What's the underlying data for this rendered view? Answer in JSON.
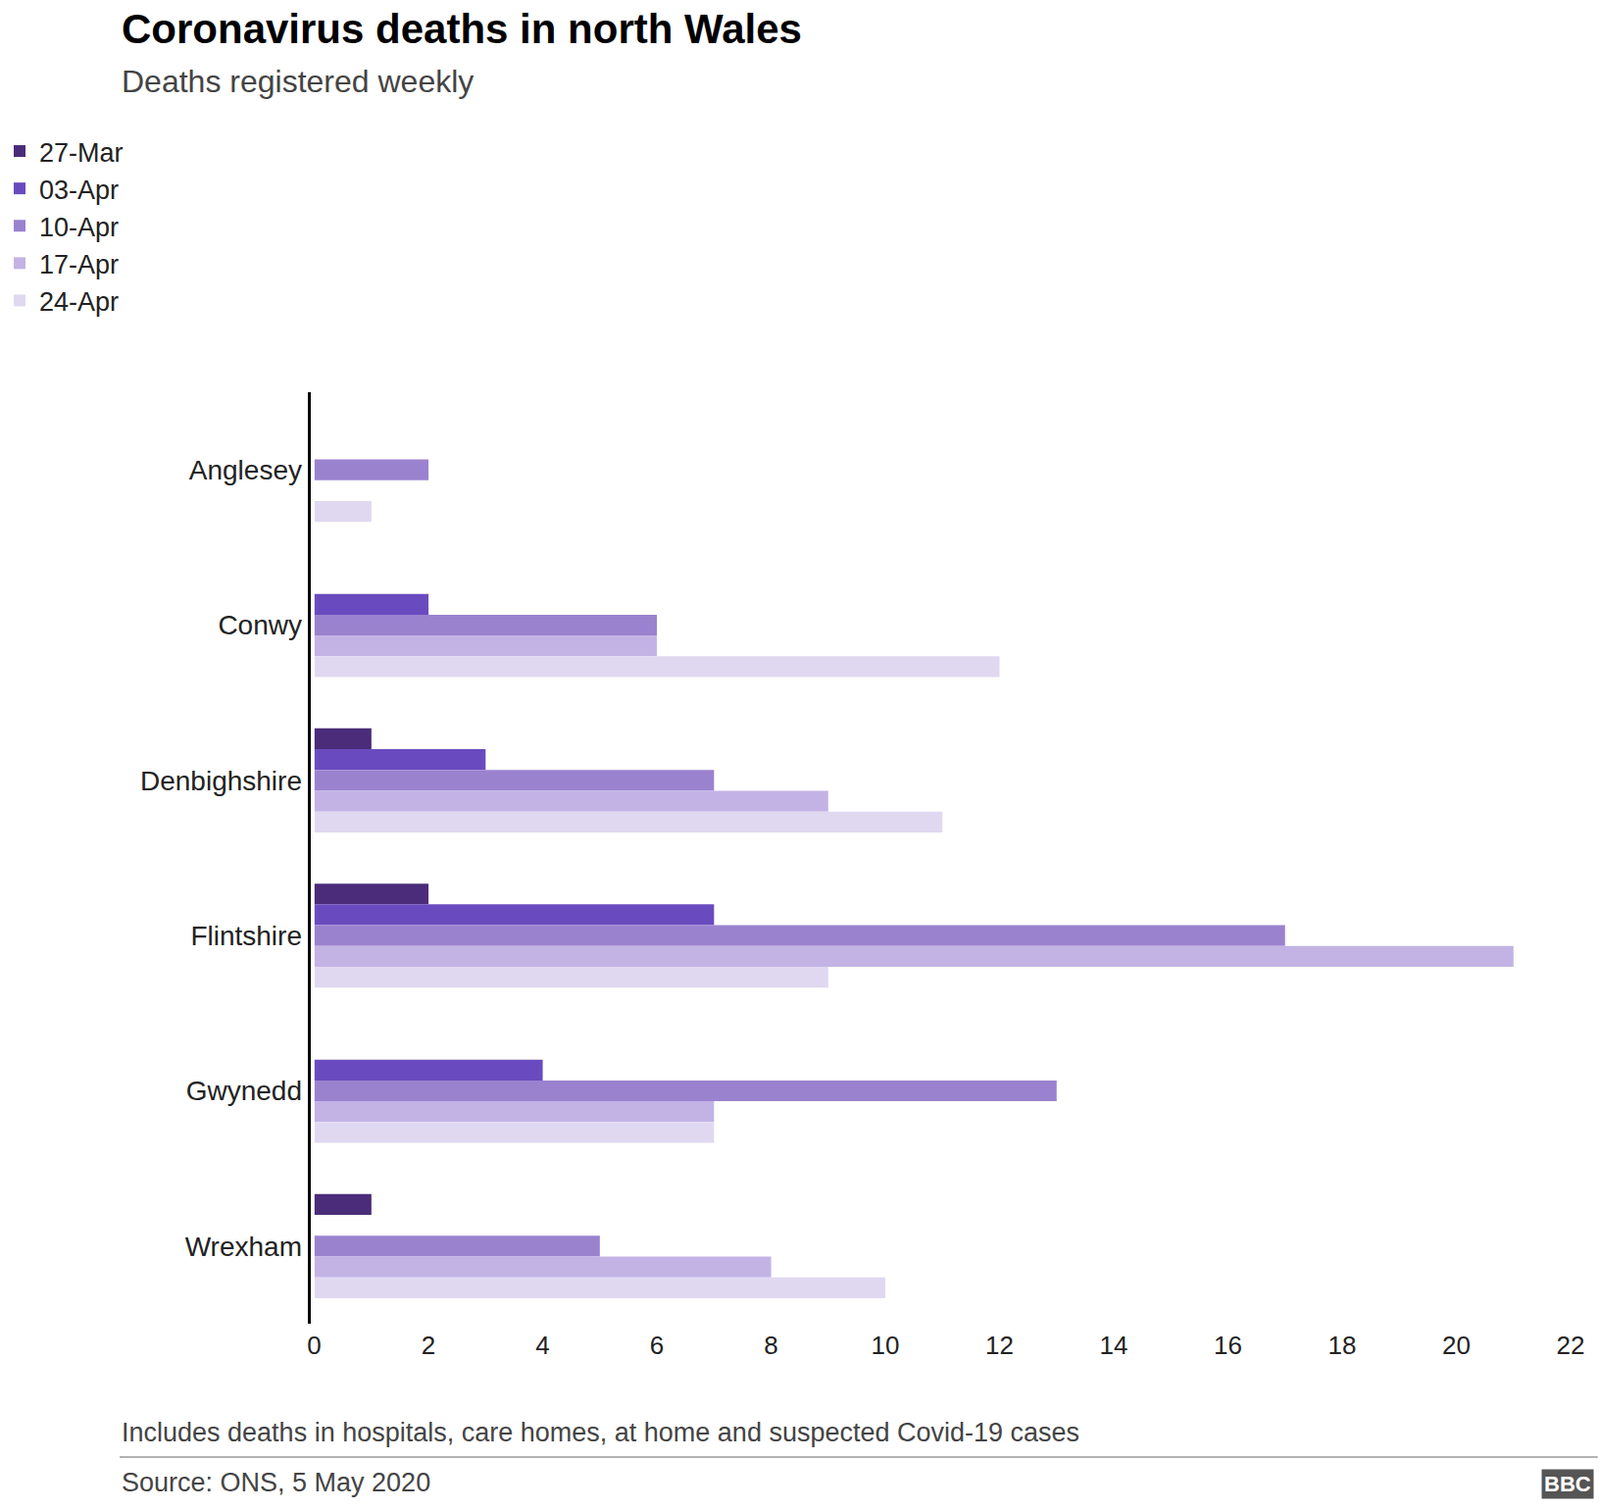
{
  "chart_data": {
    "type": "bar",
    "orientation": "horizontal",
    "title": "Coronavirus deaths in north Wales",
    "subtitle": "Deaths registered weekly",
    "note": "Includes deaths in hospitals, care homes, at home and suspected Covid-19 cases",
    "source": "Source: ONS, 5 May 2020",
    "logo": "BBC",
    "categories": [
      "Anglesey",
      "Conwy",
      "Denbighshire",
      "Flintshire",
      "Gwynedd",
      "Wrexham"
    ],
    "series": [
      {
        "name": "27-Mar",
        "color": "#4b2c7a",
        "values": [
          0,
          0,
          1,
          2,
          0,
          1
        ]
      },
      {
        "name": "03-Apr",
        "color": "#6a4bbf",
        "values": [
          0,
          2,
          3,
          7,
          4,
          0
        ]
      },
      {
        "name": "10-Apr",
        "color": "#9b82cf",
        "values": [
          2,
          6,
          7,
          17,
          13,
          5
        ]
      },
      {
        "name": "17-Apr",
        "color": "#c3b3e5",
        "values": [
          0,
          6,
          9,
          21,
          7,
          8
        ]
      },
      {
        "name": "24-Apr",
        "color": "#e0d8f0",
        "values": [
          1,
          12,
          11,
          9,
          7,
          10
        ]
      }
    ],
    "xlim": [
      0,
      22
    ],
    "xticks": [
      0,
      2,
      4,
      6,
      8,
      10,
      12,
      14,
      16,
      18,
      20,
      22
    ],
    "grid": false,
    "legend": "top-left"
  }
}
